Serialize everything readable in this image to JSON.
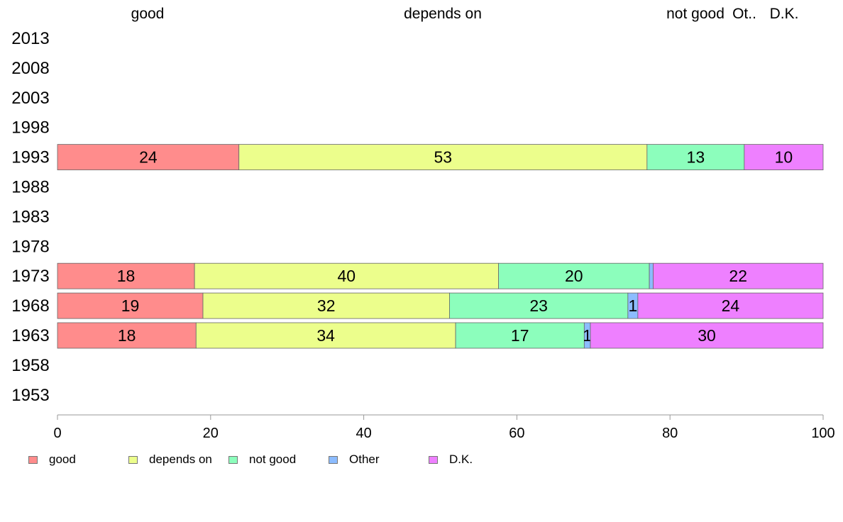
{
  "chart_data": {
    "type": "bar",
    "orientation": "horizontal",
    "stacked": true,
    "title": "",
    "xlabel": "",
    "ylabel": "",
    "xlim": [
      0,
      100
    ],
    "x_ticks": [
      0,
      20,
      40,
      60,
      80,
      100
    ],
    "grid": false,
    "legend_position": "bottom-left",
    "categories": [
      "2013",
      "2008",
      "2003",
      "1998",
      "1993",
      "1988",
      "1983",
      "1978",
      "1973",
      "1968",
      "1963",
      "1958",
      "1953"
    ],
    "top_labels": [
      "good",
      "depends on",
      "not good",
      "Ot..",
      "D.K."
    ],
    "series": [
      {
        "name": "good",
        "color": "#ff8c8c",
        "values": [
          null,
          null,
          null,
          null,
          23.7,
          null,
          null,
          null,
          17.9,
          19.0,
          18.1,
          null,
          null
        ],
        "labels": [
          "",
          "",
          "",
          "",
          "24",
          "",
          "",
          "",
          "18",
          "19",
          "18",
          "",
          ""
        ]
      },
      {
        "name": "depends on",
        "color": "#ecfe8c",
        "values": [
          null,
          null,
          null,
          null,
          53.3,
          null,
          null,
          null,
          39.7,
          32.2,
          33.9,
          null,
          null
        ],
        "labels": [
          "",
          "",
          "",
          "",
          "53",
          "",
          "",
          "",
          "40",
          "32",
          "34",
          "",
          ""
        ]
      },
      {
        "name": "not good",
        "color": "#8cfebc",
        "values": [
          null,
          null,
          null,
          null,
          12.7,
          null,
          null,
          null,
          19.7,
          23.3,
          16.8,
          null,
          null
        ],
        "labels": [
          "",
          "",
          "",
          "",
          "13",
          "",
          "",
          "",
          "20",
          "23",
          "17",
          "",
          ""
        ]
      },
      {
        "name": "Other",
        "color": "#8cbcff",
        "values": [
          null,
          null,
          null,
          null,
          0.0,
          null,
          null,
          null,
          0.5,
          1.3,
          0.8,
          null,
          null
        ],
        "labels": [
          "",
          "",
          "",
          "",
          "",
          "",
          "",
          "",
          "",
          "1",
          "1",
          "",
          ""
        ]
      },
      {
        "name": "D.K.",
        "color": "#ee80ff",
        "values": [
          null,
          null,
          null,
          null,
          10.3,
          null,
          null,
          null,
          22.2,
          24.2,
          30.4,
          null,
          null
        ],
        "labels": [
          "",
          "",
          "",
          "",
          "10",
          "",
          "",
          "",
          "22",
          "24",
          "30",
          "",
          ""
        ]
      }
    ]
  }
}
